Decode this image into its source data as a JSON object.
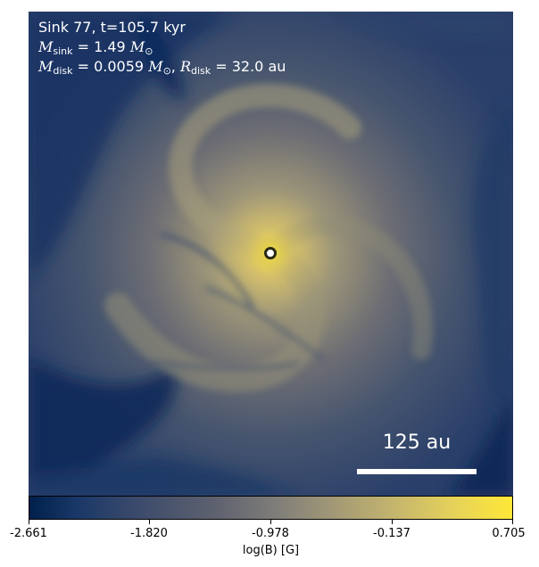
{
  "annotation": {
    "line1": "Sink 77, t=105.7 kyr",
    "sink_mass": {
      "symbol": "M",
      "sub": "sink",
      "rest": " = 1.49 ",
      "unit": "M",
      "unit_sub": "⊙"
    },
    "disk": {
      "mass_symbol": "M",
      "mass_sub": "disk",
      "mass_rest": " = 0.0059 ",
      "mass_unit": "M",
      "mass_unit_sub": "⊙",
      "sep": ", ",
      "radius_symbol": "R",
      "radius_sub": "disk",
      "radius_rest": " = 32.0 au"
    }
  },
  "scalebar": {
    "label": "125 au"
  },
  "colorbar": {
    "label": "log(B) [G]",
    "min": -2.661,
    "max": 0.705,
    "ticks": [
      "-2.661",
      "-1.820",
      "-0.978",
      "-0.137",
      "0.705"
    ]
  },
  "colors": {
    "low": "#00204c",
    "mid": "#7c7b78",
    "high": "#fee838",
    "sink_marker": "#2a2a14"
  }
}
